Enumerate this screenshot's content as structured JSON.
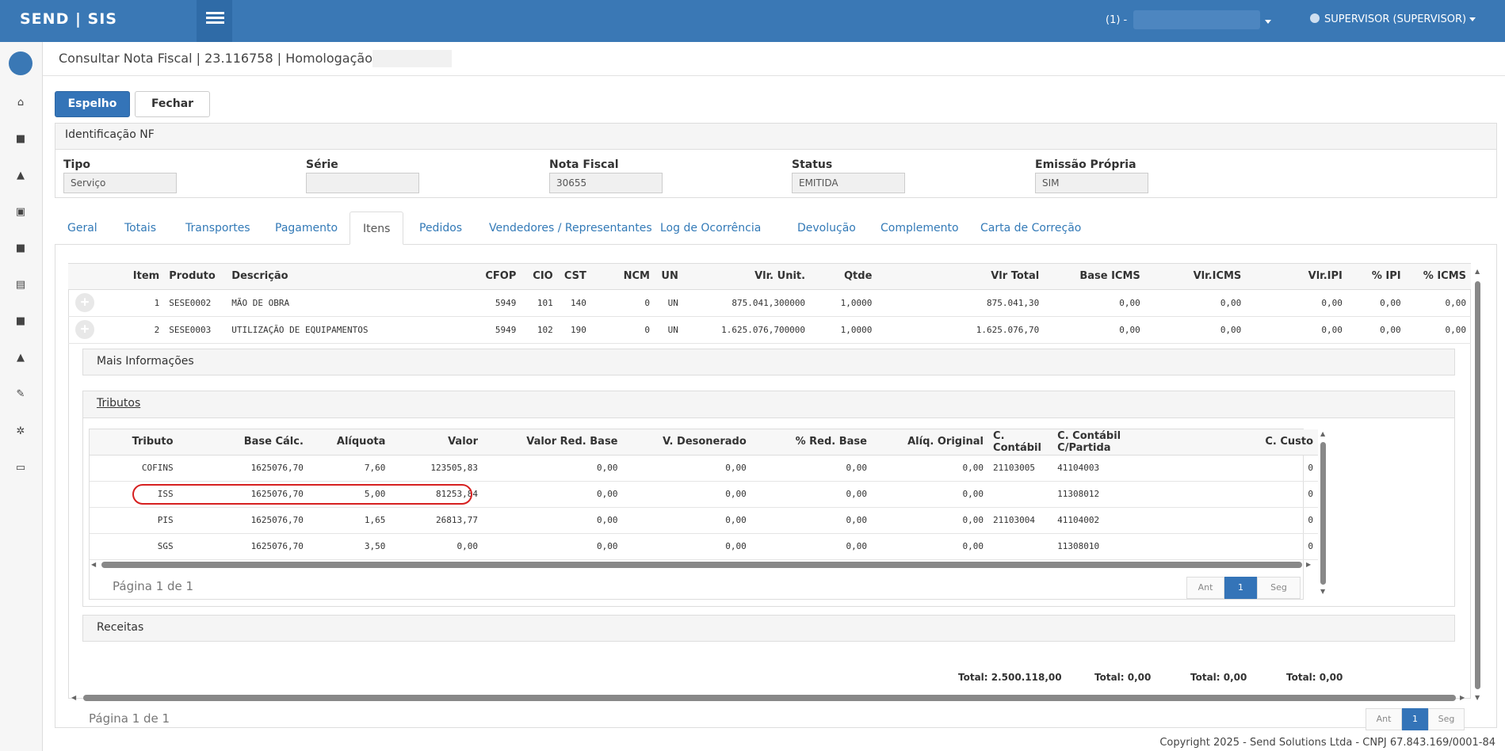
{
  "app": {
    "brand": "SEND | SIS",
    "company_selector": "(1) -",
    "user": "SUPERVISOR (SUPERVISOR)"
  },
  "sidebar": {
    "icons": [
      "logo-icon",
      "home-icon",
      "truck-icon",
      "chart-icon",
      "invoice-icon",
      "truck2-icon",
      "money-icon",
      "truck3-icon",
      "road-icon",
      "wrench-icon",
      "gears-icon",
      "print-icon"
    ]
  },
  "page": {
    "title": "Consultar Nota Fiscal | 23.116758 | Homologação |"
  },
  "toolbar": {
    "espelho": "Espelho",
    "fechar": "Fechar"
  },
  "identificacao": {
    "heading": "Identificação NF",
    "fields": [
      {
        "label": "Tipo",
        "value": "Serviço"
      },
      {
        "label": "Série",
        "value": ""
      },
      {
        "label": "Nota Fiscal",
        "value": "30655"
      },
      {
        "label": "Status",
        "value": "EMITIDA"
      },
      {
        "label": "Emissão Própria",
        "value": "SIM"
      }
    ]
  },
  "tabs": [
    "Geral",
    "Totais",
    "Transportes",
    "Pagamento",
    "Itens",
    "Pedidos",
    "Vendedores / Representantes",
    "Log de Ocorrência",
    "Devolução",
    "Complemento",
    "Carta de Correção"
  ],
  "items": {
    "headers": [
      "Item",
      "Produto",
      "Descrição",
      "CFOP",
      "CIO",
      "CST",
      "NCM",
      "UN",
      "Vlr. Unit.",
      "Qtde",
      "Vlr Total",
      "Base ICMS",
      "Vlr.ICMS",
      "Vlr.IPI",
      "% IPI",
      "% ICMS"
    ],
    "rows": [
      [
        "1",
        "SESE0002",
        "MÃO DE OBRA",
        "5949",
        "101",
        "140",
        "0",
        "UN",
        "875.041,300000",
        "1,0000",
        "875.041,30",
        "0,00",
        "0,00",
        "0,00",
        "0,00",
        "0,00"
      ],
      [
        "2",
        "SESE0003",
        "UTILIZAÇÃO DE EQUIPAMENTOS",
        "5949",
        "102",
        "190",
        "0",
        "UN",
        "1.625.076,700000",
        "1,0000",
        "1.625.076,70",
        "0,00",
        "0,00",
        "0,00",
        "0,00",
        "0,00"
      ]
    ],
    "mais_info": "Mais Informações",
    "receitas": "Receitas",
    "totals": [
      "Total: 2.500.118,00",
      "Total: 0,00",
      "Total: 0,00",
      "Total: 0,00"
    ],
    "pager": {
      "text": "Página 1 de 1",
      "prev": "Ant",
      "current": "1",
      "next": "Seg"
    }
  },
  "tributos": {
    "heading": "Tributos",
    "headers": [
      "Tributo",
      "Base Cálc.",
      "Alíquota",
      "Valor",
      "Valor Red. Base",
      "V. Desonerado",
      "% Red. Base",
      "Alíq. Original",
      "C. Contábil",
      "C. Contábil C/Partida",
      "C. Custo"
    ],
    "rows": [
      [
        "COFINS",
        "1625076,70",
        "7,60",
        "123505,83",
        "0,00",
        "0,00",
        "0,00",
        "0,00",
        "21103005",
        "41104003",
        "0"
      ],
      [
        "ISS",
        "1625076,70",
        "5,00",
        "81253,84",
        "0,00",
        "0,00",
        "0,00",
        "0,00",
        "",
        "11308012",
        "0"
      ],
      [
        "PIS",
        "1625076,70",
        "1,65",
        "26813,77",
        "0,00",
        "0,00",
        "0,00",
        "0,00",
        "21103004",
        "41104002",
        "0"
      ],
      [
        "SGS",
        "1625076,70",
        "3,50",
        "0,00",
        "0,00",
        "0,00",
        "0,00",
        "0,00",
        "",
        "11308010",
        "0"
      ]
    ],
    "pager": {
      "text": "Página 1 de 1",
      "prev": "Ant",
      "current": "1",
      "next": "Seg"
    }
  },
  "footer": "Copyright 2025 - Send Solutions Ltda - CNPJ 67.843.169/0001-84"
}
